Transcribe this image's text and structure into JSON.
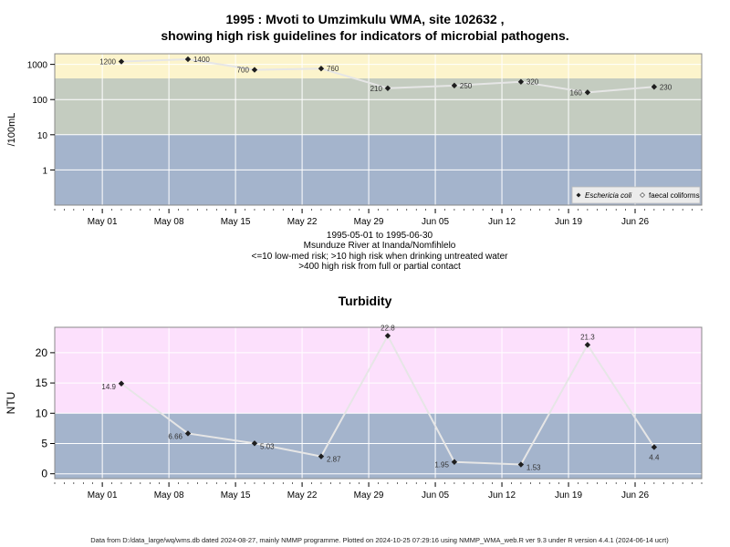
{
  "chart_data": [
    {
      "type": "line",
      "title_line1": "1995 : Mvoti to Umzimkulu WMA, site 102632 ,",
      "title_line2": "showing high risk guidelines for indicators of microbial pathogens.",
      "ylabel": "/100mL",
      "y_scale": "log",
      "ylim": [
        0.1,
        2000
      ],
      "yticks": [
        1,
        10,
        100,
        1000
      ],
      "ytick_labels": [
        "1",
        "10",
        "100",
        "1000"
      ],
      "xlim": [
        "1995-04-26",
        "1995-07-03"
      ],
      "xticks": [
        "1995-05-01",
        "1995-05-08",
        "1995-05-15",
        "1995-05-22",
        "1995-05-29",
        "1995-06-05",
        "1995-06-12",
        "1995-06-19",
        "1995-06-26"
      ],
      "xtick_labels": [
        "May 01",
        "May 08",
        "May 15",
        "May 22",
        "May 29",
        "Jun 05",
        "Jun 12",
        "Jun 19",
        "Jun 26"
      ],
      "bands": [
        {
          "from": 0.1,
          "to": 10,
          "color": "#a4b4cc"
        },
        {
          "from": 10,
          "to": 400,
          "color": "#c4ccc0"
        },
        {
          "from": 400,
          "to": 2000,
          "color": "#fcf4cc"
        }
      ],
      "series": [
        {
          "name": "Eschericia coli",
          "x": [
            "1995-05-03",
            "1995-05-10",
            "1995-05-17",
            "1995-05-24",
            "1995-05-31",
            "1995-06-07",
            "1995-06-14",
            "1995-06-21",
            "1995-06-28"
          ],
          "y": [
            1200,
            1400,
            700,
            760,
            210,
            250,
            320,
            160,
            230
          ],
          "labels": [
            "1200",
            "1400",
            "700",
            "760",
            "210",
            "250",
            "320",
            "160",
            "230"
          ],
          "label_side": [
            "left",
            "right",
            "left",
            "right",
            "left",
            "right",
            "right",
            "left",
            "right"
          ]
        }
      ],
      "legend": {
        "position": "bottom-right",
        "items": [
          "Eschericia coli",
          "faecal coliforms"
        ]
      }
    },
    {
      "type": "line",
      "title": "Turbidity",
      "ylabel": "NTU",
      "ylim": [
        -0.8,
        24.2
      ],
      "yticks": [
        0,
        5,
        10,
        15,
        20
      ],
      "ytick_labels": [
        "0",
        "5",
        "10",
        "15",
        "20"
      ],
      "xlim": [
        "1995-04-26",
        "1995-07-03"
      ],
      "xticks": [
        "1995-05-01",
        "1995-05-08",
        "1995-05-15",
        "1995-05-22",
        "1995-05-29",
        "1995-06-05",
        "1995-06-12",
        "1995-06-19",
        "1995-06-26"
      ],
      "xtick_labels": [
        "May 01",
        "May 08",
        "May 15",
        "May 22",
        "May 29",
        "Jun 05",
        "Jun 12",
        "Jun 19",
        "Jun 26"
      ],
      "bands": [
        {
          "from": -0.8,
          "to": 10,
          "color": "#a4b4cc"
        },
        {
          "from": 10,
          "to": 24.2,
          "color": "#fce0fc"
        }
      ],
      "series": [
        {
          "name": "Turbidity",
          "x": [
            "1995-05-03",
            "1995-05-10",
            "1995-05-17",
            "1995-05-24",
            "1995-05-31",
            "1995-06-07",
            "1995-06-14",
            "1995-06-21",
            "1995-06-28"
          ],
          "y": [
            14.9,
            6.66,
            5.03,
            2.87,
            22.8,
            1.95,
            1.53,
            21.3,
            4.4
          ],
          "labels": [
            "14.9",
            "6.66",
            "5.03",
            "2.87",
            "22.8",
            "1.95",
            "1.53",
            "21.3",
            "4.4"
          ],
          "label_side": [
            "left",
            "left",
            "right",
            "right",
            "above",
            "left",
            "right",
            "above",
            "below"
          ]
        }
      ]
    }
  ],
  "caption": {
    "line1": "1995-05-01 to 1995-06-30",
    "line2": "Msunduze River at Inanda/Nomfihlelo",
    "line3": "<=10 low-med risk; >10 high risk when drinking untreated water",
    "line4": ">400 high risk from full or partial contact"
  },
  "footer": "Data from D:/data_large/wq/wms.db dated 2024-08-27, mainly NMMP programme. Plotted on 2024-10-25 07:29:16 using NMMP_WMA_web.R ver 9.3 under R version 4.4.1 (2024-06-14 ucrt)",
  "colors": {
    "line": "#e6e6e6",
    "point": "#1e1e1e",
    "grid": "#ffffff",
    "frame": "#888888"
  }
}
